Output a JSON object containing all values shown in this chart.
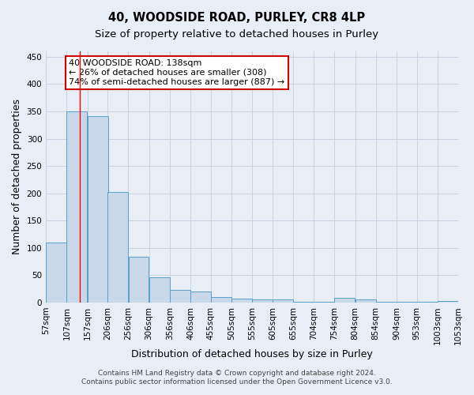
{
  "title": "40, WOODSIDE ROAD, PURLEY, CR8 4LP",
  "subtitle": "Size of property relative to detached houses in Purley",
  "xlabel": "Distribution of detached houses by size in Purley",
  "ylabel": "Number of detached properties",
  "bar_left_edges": [
    57,
    107,
    157,
    206,
    256,
    306,
    356,
    406,
    455,
    505,
    555,
    605,
    655,
    704,
    754,
    804,
    854,
    904,
    953,
    1003
  ],
  "bar_widths": [
    50,
    50,
    50,
    50,
    50,
    50,
    50,
    50,
    50,
    50,
    50,
    50,
    50,
    50,
    50,
    50,
    50,
    50,
    50,
    50
  ],
  "bar_heights": [
    110,
    350,
    342,
    202,
    84,
    46,
    23,
    20,
    10,
    7,
    6,
    6,
    2,
    2,
    8,
    6,
    2,
    2,
    2,
    3
  ],
  "bar_color": "#c8d8e8",
  "bar_edge_color": "#5a9ec8",
  "bar_edge_width": 0.7,
  "grid_color": "#c8d4e4",
  "bg_color": "#e8eef6",
  "red_line_x": 138,
  "ylim": [
    0,
    460
  ],
  "yticks": [
    0,
    50,
    100,
    150,
    200,
    250,
    300,
    350,
    400,
    450
  ],
  "xtick_labels": [
    "57sqm",
    "107sqm",
    "157sqm",
    "206sqm",
    "256sqm",
    "306sqm",
    "356sqm",
    "406sqm",
    "455sqm",
    "505sqm",
    "555sqm",
    "605sqm",
    "655sqm",
    "704sqm",
    "754sqm",
    "804sqm",
    "854sqm",
    "904sqm",
    "953sqm",
    "1003sqm",
    "1053sqm"
  ],
  "annotation_text": "40 WOODSIDE ROAD: 138sqm\n← 26% of detached houses are smaller (308)\n74% of semi-detached houses are larger (887) →",
  "annotation_box_color": "#ffffff",
  "annotation_box_edge_color": "#cc0000",
  "footer_line1": "Contains HM Land Registry data © Crown copyright and database right 2024.",
  "footer_line2": "Contains public sector information licensed under the Open Government Licence v3.0.",
  "title_fontsize": 10.5,
  "subtitle_fontsize": 9.5,
  "axis_label_fontsize": 9,
  "tick_fontsize": 7.5,
  "annotation_fontsize": 8,
  "footer_fontsize": 6.5
}
